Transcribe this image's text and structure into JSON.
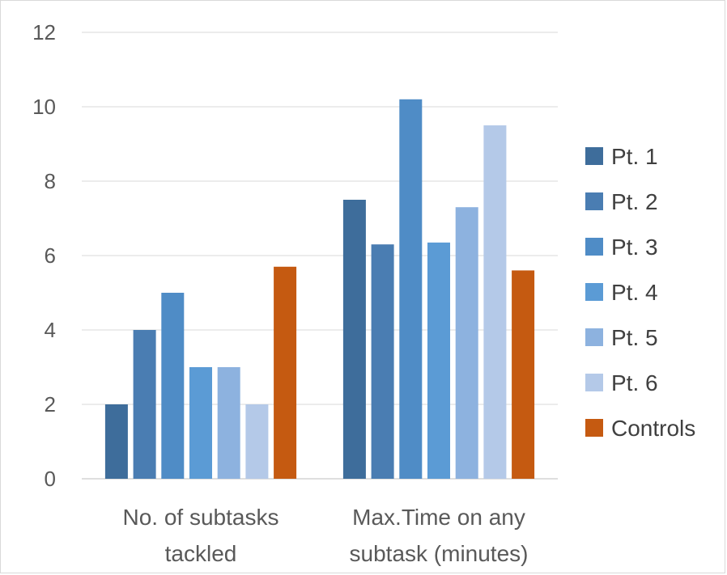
{
  "chart_data": {
    "type": "bar",
    "categories": [
      [
        "No. of subtasks",
        "tackled"
      ],
      [
        "Max.Time on any",
        "subtask (minutes)"
      ]
    ],
    "series": [
      {
        "name": "Pt. 1",
        "values": [
          2,
          7.5
        ],
        "color": "#3e6d9b"
      },
      {
        "name": "Pt. 2",
        "values": [
          4,
          6.3
        ],
        "color": "#4a7db2"
      },
      {
        "name": "Pt. 3",
        "values": [
          5,
          10.2
        ],
        "color": "#4f8cc6"
      },
      {
        "name": "Pt. 4",
        "values": [
          3,
          6.35
        ],
        "color": "#5b9bd5"
      },
      {
        "name": "Pt. 5",
        "values": [
          3,
          7.3
        ],
        "color": "#8db2df"
      },
      {
        "name": "Pt. 6",
        "values": [
          2,
          9.5
        ],
        "color": "#b4c9e8"
      },
      {
        "name": "Controls",
        "values": [
          5.7,
          5.6
        ],
        "color": "#c55a11"
      }
    ],
    "yticks": [
      "0",
      "2",
      "4",
      "6",
      "8",
      "10",
      "12"
    ],
    "ylim": [
      0,
      12
    ],
    "grid": true,
    "legend_position": "right"
  }
}
